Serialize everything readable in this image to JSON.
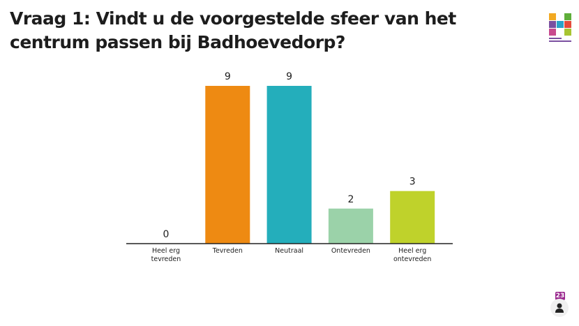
{
  "title": "Vraag 1: Vindt u de voorgestelde sfeer van het centrum passen bij Badhoevedorp?",
  "logo": {
    "text": "gemeente Haarlemmermeer"
  },
  "participants": {
    "count": "23",
    "icon": "person-icon"
  },
  "chart_data": {
    "type": "bar",
    "categories": [
      [
        "Heel erg",
        "tevreden"
      ],
      [
        "Tevreden"
      ],
      [
        "Neutraal"
      ],
      [
        "Ontevreden"
      ],
      [
        "Heel erg",
        "ontevreden"
      ]
    ],
    "values": [
      0,
      9,
      9,
      2,
      3
    ],
    "colors": [
      "#ee8a12",
      "#ee8a12",
      "#24aebb",
      "#9bd2a9",
      "#bfd22b"
    ],
    "ylim": [
      0,
      9
    ],
    "grid": false
  }
}
